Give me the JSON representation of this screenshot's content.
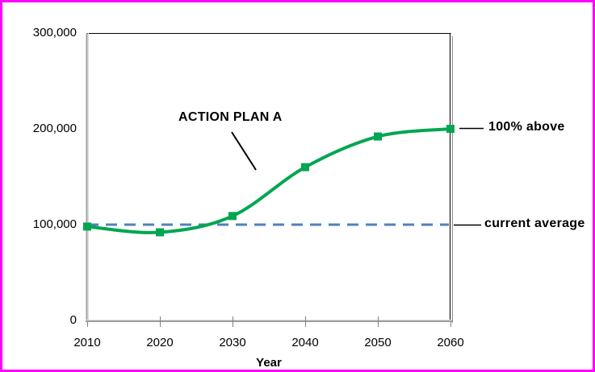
{
  "page": {
    "border_color": "#ff00ff",
    "background": "#ffffff"
  },
  "chart_data": {
    "type": "line",
    "title": "",
    "xlabel": "Year",
    "ylabel": "",
    "x": [
      2010,
      2020,
      2030,
      2040,
      2050,
      2060
    ],
    "x_tick_labels": [
      "2010",
      "2020",
      "2030",
      "2040",
      "2050",
      "2060"
    ],
    "ylim": [
      0,
      300000
    ],
    "y_ticks": [
      0,
      100000,
      200000,
      300000
    ],
    "y_tick_labels": [
      "0",
      "100,000",
      "200,000",
      "300,000"
    ],
    "grid": false,
    "legend": "none",
    "series": [
      {
        "name": "ACTION PLAN A",
        "color": "#00a651",
        "marker": "square",
        "values": [
          98000,
          92000,
          109000,
          160000,
          192000,
          200000
        ]
      }
    ],
    "reference_line": {
      "label": "current average",
      "value": 100000,
      "color": "#4f81bd",
      "style": "dashed"
    },
    "annotations": {
      "last_point_label": "100% above"
    }
  }
}
